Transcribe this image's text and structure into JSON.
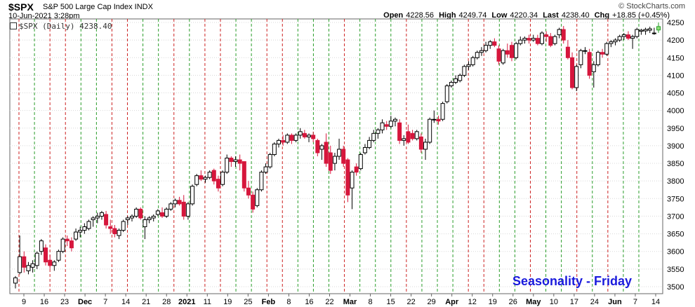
{
  "header": {
    "symbol": "$SPX",
    "name": "S&P 500 Large Cap Index INDX",
    "date": "10-Jun-2021 3:28pm",
    "brand": "© StockCharts.com",
    "open_label": "Open",
    "open": "4228.56",
    "high_label": "High",
    "high": "4249.74",
    "low_label": "Low",
    "low": "4220.34",
    "last_label": "Last",
    "last": "4238.40",
    "chg_label": "Chg",
    "chg": "+18.85 (+0.45%)"
  },
  "legend": "$SPX (Daily) 4238.40",
  "seasonality_label": "Seasonality - Friday",
  "colors": {
    "up": "#ffffff",
    "down": "#d6163c",
    "green_line": "#2a9d2a",
    "red_line": "#cc2222",
    "grid": "#d8d8d8",
    "title": "#1a1adc"
  },
  "chart_data": {
    "type": "candlestick",
    "ylim": [
      3480,
      4260
    ],
    "y_ticks": [
      3500,
      3550,
      3600,
      3650,
      3700,
      3750,
      3800,
      3850,
      3900,
      3950,
      4000,
      4050,
      4100,
      4150,
      4200,
      4250
    ],
    "x_labels": [
      "9",
      "16",
      "23",
      "Dec",
      "7",
      "14",
      "21",
      "28",
      "2021",
      "11",
      "19",
      "25",
      "Feb",
      "8",
      "16",
      "22",
      "Mar",
      "8",
      "15",
      "22",
      "29",
      "Apr",
      "12",
      "19",
      "26",
      "May",
      "10",
      "17",
      "24",
      "Jun",
      "7",
      "14"
    ],
    "bold_labels": [
      "Dec",
      "2021",
      "Feb",
      "Mar",
      "Apr",
      "May",
      "Jun"
    ],
    "vline_colors": [
      "r",
      "g",
      "r",
      "r",
      "g",
      "g",
      "r",
      "r",
      "g",
      "g",
      "r",
      "g",
      "r",
      "r",
      "g",
      "g",
      "r",
      "r",
      "g",
      "g",
      "g",
      "r",
      "g",
      "g",
      "g",
      "r",
      "g",
      "g",
      "g",
      "r",
      "r",
      "g",
      "g",
      "r",
      "g",
      "g",
      "r",
      "g",
      "r",
      "g",
      "g"
    ],
    "series": [
      {
        "o": 3510,
        "h": 3530,
        "l": 3495,
        "c": 3525
      },
      {
        "o": 3540,
        "h": 3645,
        "l": 3535,
        "c": 3585
      },
      {
        "o": 3585,
        "h": 3600,
        "l": 3540,
        "c": 3555
      },
      {
        "o": 3545,
        "h": 3570,
        "l": 3535,
        "c": 3560
      },
      {
        "o": 3555,
        "h": 3575,
        "l": 3540,
        "c": 3565
      },
      {
        "o": 3560,
        "h": 3600,
        "l": 3550,
        "c": 3595
      },
      {
        "o": 3600,
        "h": 3635,
        "l": 3590,
        "c": 3630
      },
      {
        "o": 3610,
        "h": 3620,
        "l": 3560,
        "c": 3570
      },
      {
        "o": 3575,
        "h": 3590,
        "l": 3550,
        "c": 3560
      },
      {
        "o": 3560,
        "h": 3575,
        "l": 3545,
        "c": 3570
      },
      {
        "o": 3575,
        "h": 3605,
        "l": 3570,
        "c": 3600
      },
      {
        "o": 3600,
        "h": 3640,
        "l": 3595,
        "c": 3635
      },
      {
        "o": 3635,
        "h": 3645,
        "l": 3615,
        "c": 3630
      },
      {
        "o": 3630,
        "h": 3640,
        "l": 3600,
        "c": 3610
      },
      {
        "o": 3635,
        "h": 3665,
        "l": 3630,
        "c": 3655
      },
      {
        "o": 3655,
        "h": 3670,
        "l": 3640,
        "c": 3660
      },
      {
        "o": 3660,
        "h": 3680,
        "l": 3650,
        "c": 3670
      },
      {
        "o": 3665,
        "h": 3690,
        "l": 3660,
        "c": 3685
      },
      {
        "o": 3690,
        "h": 3700,
        "l": 3670,
        "c": 3695
      },
      {
        "o": 3695,
        "h": 3710,
        "l": 3680,
        "c": 3700
      },
      {
        "o": 3700,
        "h": 3715,
        "l": 3690,
        "c": 3710
      },
      {
        "o": 3705,
        "h": 3715,
        "l": 3665,
        "c": 3675
      },
      {
        "o": 3670,
        "h": 3690,
        "l": 3650,
        "c": 3665
      },
      {
        "o": 3665,
        "h": 3675,
        "l": 3640,
        "c": 3650
      },
      {
        "o": 3645,
        "h": 3665,
        "l": 3635,
        "c": 3660
      },
      {
        "o": 3660,
        "h": 3690,
        "l": 3655,
        "c": 3685
      },
      {
        "o": 3690,
        "h": 3700,
        "l": 3675,
        "c": 3695
      },
      {
        "o": 3695,
        "h": 3705,
        "l": 3685,
        "c": 3700
      },
      {
        "o": 3700,
        "h": 3725,
        "l": 3695,
        "c": 3720
      },
      {
        "o": 3720,
        "h": 3725,
        "l": 3690,
        "c": 3695
      },
      {
        "o": 3670,
        "h": 3700,
        "l": 3635,
        "c": 3690
      },
      {
        "o": 3690,
        "h": 3700,
        "l": 3680,
        "c": 3695
      },
      {
        "o": 3695,
        "h": 3705,
        "l": 3685,
        "c": 3700
      },
      {
        "o": 3705,
        "h": 3720,
        "l": 3700,
        "c": 3715
      },
      {
        "o": 3710,
        "h": 3725,
        "l": 3695,
        "c": 3700
      },
      {
        "o": 3700,
        "h": 3725,
        "l": 3695,
        "c": 3720
      },
      {
        "o": 3720,
        "h": 3740,
        "l": 3715,
        "c": 3735
      },
      {
        "o": 3735,
        "h": 3750,
        "l": 3725,
        "c": 3745
      },
      {
        "o": 3745,
        "h": 3755,
        "l": 3730,
        "c": 3735
      },
      {
        "o": 3740,
        "h": 3760,
        "l": 3690,
        "c": 3700
      },
      {
        "o": 3700,
        "h": 3740,
        "l": 3690,
        "c": 3735
      },
      {
        "o": 3735,
        "h": 3790,
        "l": 3730,
        "c": 3785
      },
      {
        "o": 3790,
        "h": 3820,
        "l": 3785,
        "c": 3815
      },
      {
        "o": 3815,
        "h": 3830,
        "l": 3800,
        "c": 3805
      },
      {
        "o": 3805,
        "h": 3815,
        "l": 3795,
        "c": 3810
      },
      {
        "o": 3810,
        "h": 3830,
        "l": 3805,
        "c": 3825
      },
      {
        "o": 3830,
        "h": 3835,
        "l": 3790,
        "c": 3800
      },
      {
        "o": 3805,
        "h": 3815,
        "l": 3770,
        "c": 3780
      },
      {
        "o": 3790,
        "h": 3830,
        "l": 3785,
        "c": 3825
      },
      {
        "o": 3825,
        "h": 3875,
        "l": 3820,
        "c": 3865
      },
      {
        "o": 3865,
        "h": 3870,
        "l": 3840,
        "c": 3855
      },
      {
        "o": 3855,
        "h": 3870,
        "l": 3840,
        "c": 3860
      },
      {
        "o": 3860,
        "h": 3875,
        "l": 3830,
        "c": 3850
      },
      {
        "o": 3855,
        "h": 3855,
        "l": 3770,
        "c": 3780
      },
      {
        "o": 3780,
        "h": 3800,
        "l": 3750,
        "c": 3760
      },
      {
        "o": 3760,
        "h": 3770,
        "l": 3710,
        "c": 3720
      },
      {
        "o": 3730,
        "h": 3780,
        "l": 3725,
        "c": 3775
      },
      {
        "o": 3775,
        "h": 3830,
        "l": 3770,
        "c": 3825
      },
      {
        "o": 3825,
        "h": 3850,
        "l": 3820,
        "c": 3840
      },
      {
        "o": 3840,
        "h": 3880,
        "l": 3835,
        "c": 3875
      },
      {
        "o": 3875,
        "h": 3910,
        "l": 3870,
        "c": 3905
      },
      {
        "o": 3905,
        "h": 3920,
        "l": 3895,
        "c": 3915
      },
      {
        "o": 3915,
        "h": 3930,
        "l": 3900,
        "c": 3910
      },
      {
        "o": 3910,
        "h": 3935,
        "l": 3905,
        "c": 3930
      },
      {
        "o": 3930,
        "h": 3935,
        "l": 3905,
        "c": 3915
      },
      {
        "o": 3915,
        "h": 3935,
        "l": 3910,
        "c": 3930
      },
      {
        "o": 3930,
        "h": 3950,
        "l": 3920,
        "c": 3940
      },
      {
        "o": 3935,
        "h": 3945,
        "l": 3920,
        "c": 3925
      },
      {
        "o": 3925,
        "h": 3935,
        "l": 3910,
        "c": 3930
      },
      {
        "o": 3930,
        "h": 3940,
        "l": 3910,
        "c": 3920
      },
      {
        "o": 3915,
        "h": 3920,
        "l": 3870,
        "c": 3880
      },
      {
        "o": 3890,
        "h": 3905,
        "l": 3860,
        "c": 3900
      },
      {
        "o": 3910,
        "h": 3935,
        "l": 3840,
        "c": 3850
      },
      {
        "o": 3880,
        "h": 3900,
        "l": 3820,
        "c": 3830
      },
      {
        "o": 3850,
        "h": 3880,
        "l": 3830,
        "c": 3870
      },
      {
        "o": 3870,
        "h": 3920,
        "l": 3860,
        "c": 3890
      },
      {
        "o": 3890,
        "h": 3900,
        "l": 3840,
        "c": 3850
      },
      {
        "o": 3860,
        "h": 3865,
        "l": 3740,
        "c": 3760
      },
      {
        "o": 3780,
        "h": 3830,
        "l": 3720,
        "c": 3825
      },
      {
        "o": 3840,
        "h": 3850,
        "l": 3815,
        "c": 3825
      },
      {
        "o": 3835,
        "h": 3880,
        "l": 3830,
        "c": 3875
      },
      {
        "o": 3880,
        "h": 3905,
        "l": 3875,
        "c": 3895
      },
      {
        "o": 3895,
        "h": 3925,
        "l": 3890,
        "c": 3915
      },
      {
        "o": 3915,
        "h": 3945,
        "l": 3910,
        "c": 3935
      },
      {
        "o": 3935,
        "h": 3950,
        "l": 3920,
        "c": 3945
      },
      {
        "o": 3945,
        "h": 3975,
        "l": 3935,
        "c": 3965
      },
      {
        "o": 3960,
        "h": 3970,
        "l": 3945,
        "c": 3955
      },
      {
        "o": 3955,
        "h": 3985,
        "l": 3950,
        "c": 3970
      },
      {
        "o": 3970,
        "h": 3980,
        "l": 3955,
        "c": 3975
      },
      {
        "o": 3965,
        "h": 3975,
        "l": 3905,
        "c": 3915
      },
      {
        "o": 3915,
        "h": 3930,
        "l": 3900,
        "c": 3920
      },
      {
        "o": 3940,
        "h": 3960,
        "l": 3905,
        "c": 3910
      },
      {
        "o": 3935,
        "h": 3945,
        "l": 3915,
        "c": 3920
      },
      {
        "o": 3920,
        "h": 3945,
        "l": 3915,
        "c": 3940
      },
      {
        "o": 3925,
        "h": 3935,
        "l": 3880,
        "c": 3890
      },
      {
        "o": 3890,
        "h": 3920,
        "l": 3860,
        "c": 3910
      },
      {
        "o": 3910,
        "h": 3980,
        "l": 3905,
        "c": 3975
      },
      {
        "o": 3975,
        "h": 4000,
        "l": 3965,
        "c": 3975
      },
      {
        "o": 3975,
        "h": 3985,
        "l": 3960,
        "c": 3970
      },
      {
        "o": 3975,
        "h": 4025,
        "l": 3970,
        "c": 4020
      },
      {
        "o": 4025,
        "h": 4075,
        "l": 4020,
        "c": 4070
      },
      {
        "o": 4070,
        "h": 4085,
        "l": 4065,
        "c": 4080
      },
      {
        "o": 4080,
        "h": 4100,
        "l": 4075,
        "c": 4090
      },
      {
        "o": 4085,
        "h": 4105,
        "l": 4080,
        "c": 4100
      },
      {
        "o": 4100,
        "h": 4130,
        "l": 4095,
        "c": 4125
      },
      {
        "o": 4125,
        "h": 4140,
        "l": 4115,
        "c": 4130
      },
      {
        "o": 4130,
        "h": 4155,
        "l": 4125,
        "c": 4150
      },
      {
        "o": 4150,
        "h": 4170,
        "l": 4145,
        "c": 4165
      },
      {
        "o": 4165,
        "h": 4180,
        "l": 4155,
        "c": 4170
      },
      {
        "o": 4170,
        "h": 4195,
        "l": 4165,
        "c": 4185
      },
      {
        "o": 4185,
        "h": 4200,
        "l": 4175,
        "c": 4195
      },
      {
        "o": 4195,
        "h": 4205,
        "l": 4180,
        "c": 4185
      },
      {
        "o": 4175,
        "h": 4185,
        "l": 4130,
        "c": 4140
      },
      {
        "o": 4135,
        "h": 4175,
        "l": 4130,
        "c": 4170
      },
      {
        "o": 4170,
        "h": 4190,
        "l": 4150,
        "c": 4160
      },
      {
        "o": 4185,
        "h": 4195,
        "l": 4140,
        "c": 4150
      },
      {
        "o": 4150,
        "h": 4195,
        "l": 4145,
        "c": 4190
      },
      {
        "o": 4190,
        "h": 4210,
        "l": 4185,
        "c": 4200
      },
      {
        "o": 4200,
        "h": 4210,
        "l": 4190,
        "c": 4205
      },
      {
        "o": 4205,
        "h": 4215,
        "l": 4190,
        "c": 4200
      },
      {
        "o": 4200,
        "h": 4215,
        "l": 4195,
        "c": 4205
      },
      {
        "o": 4205,
        "h": 4215,
        "l": 4185,
        "c": 4190
      },
      {
        "o": 4190,
        "h": 4225,
        "l": 4185,
        "c": 4220
      },
      {
        "o": 4215,
        "h": 4225,
        "l": 4195,
        "c": 4210
      },
      {
        "o": 4210,
        "h": 4220,
        "l": 4180,
        "c": 4185
      },
      {
        "o": 4190,
        "h": 4215,
        "l": 4185,
        "c": 4210
      },
      {
        "o": 4215,
        "h": 4235,
        "l": 4205,
        "c": 4230
      },
      {
        "o": 4230,
        "h": 4240,
        "l": 4190,
        "c": 4200
      },
      {
        "o": 4180,
        "h": 4200,
        "l": 4145,
        "c": 4150
      },
      {
        "o": 4150,
        "h": 4165,
        "l": 4060,
        "c": 4065
      },
      {
        "o": 4065,
        "h": 4130,
        "l": 4055,
        "c": 4125
      },
      {
        "o": 4130,
        "h": 4175,
        "l": 4120,
        "c": 4170
      },
      {
        "o": 4170,
        "h": 4180,
        "l": 4160,
        "c": 4170
      },
      {
        "o": 4165,
        "h": 4175,
        "l": 4090,
        "c": 4100
      },
      {
        "o": 4110,
        "h": 4140,
        "l": 4065,
        "c": 4130
      },
      {
        "o": 4130,
        "h": 4170,
        "l": 4125,
        "c": 4165
      },
      {
        "o": 4165,
        "h": 4175,
        "l": 4150,
        "c": 4160
      },
      {
        "o": 4160,
        "h": 4195,
        "l": 4155,
        "c": 4190
      },
      {
        "o": 4190,
        "h": 4200,
        "l": 4180,
        "c": 4195
      },
      {
        "o": 4195,
        "h": 4205,
        "l": 4185,
        "c": 4200
      },
      {
        "o": 4200,
        "h": 4215,
        "l": 4195,
        "c": 4210
      },
      {
        "o": 4210,
        "h": 4220,
        "l": 4200,
        "c": 4215
      },
      {
        "o": 4215,
        "h": 4225,
        "l": 4200,
        "c": 4205
      },
      {
        "o": 4205,
        "h": 4215,
        "l": 4175,
        "c": 4210
      },
      {
        "o": 4210,
        "h": 4235,
        "l": 4205,
        "c": 4230
      },
      {
        "o": 4225,
        "h": 4232,
        "l": 4215,
        "c": 4228
      },
      {
        "o": 4226,
        "h": 4235,
        "l": 4215,
        "c": 4230
      },
      {
        "o": 4228,
        "h": 4238,
        "l": 4220,
        "c": 4232
      },
      {
        "o": 4219,
        "h": 4235,
        "l": 4215,
        "c": 4220
      },
      {
        "o": 4228.56,
        "h": 4249.74,
        "l": 4220.34,
        "c": 4238.4
      }
    ]
  }
}
